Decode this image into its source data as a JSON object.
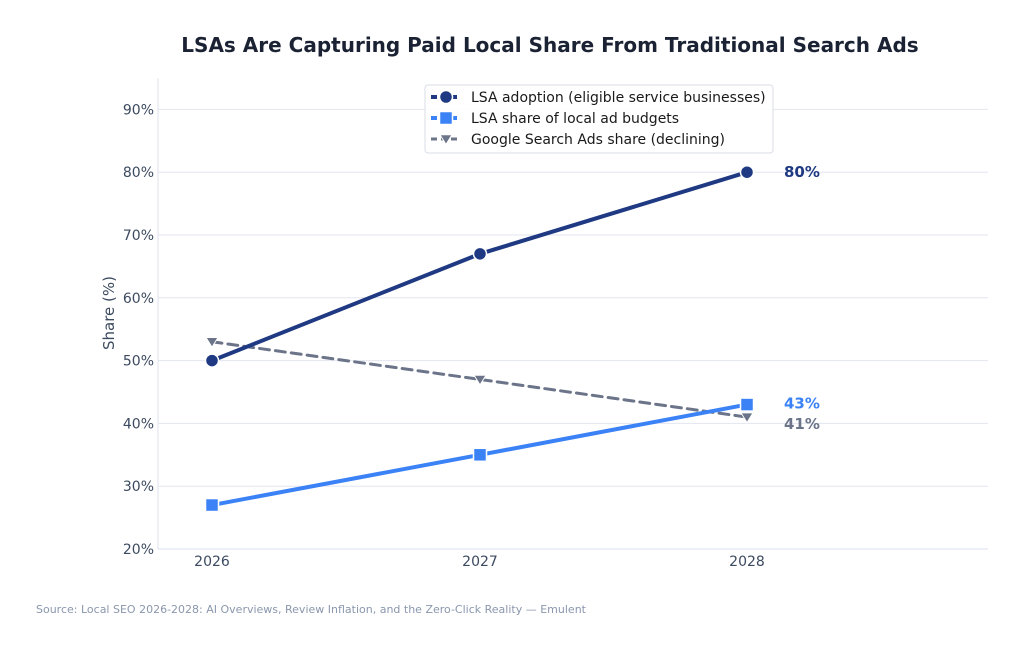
{
  "chart_data": {
    "type": "line",
    "title": "LSAs Are Capturing Paid Local Share From Traditional Search Ads",
    "xlabel": "",
    "ylabel": "Share (%)",
    "categories": [
      "2026",
      "2027",
      "2028"
    ],
    "ylim": [
      20,
      95
    ],
    "yticks": [
      20,
      30,
      40,
      50,
      60,
      70,
      80,
      90
    ],
    "ytick_labels": [
      "20%",
      "30%",
      "40%",
      "50%",
      "60%",
      "70%",
      "80%",
      "90%"
    ],
    "grid": true,
    "legend_position": "top-center",
    "series": [
      {
        "name": "LSA adoption (eligible service businesses)",
        "values": [
          50,
          67,
          80
        ],
        "color": "#1f3a82",
        "marker": "circle",
        "linestyle": "solid",
        "end_label": "80%"
      },
      {
        "name": "LSA share of local ad budgets",
        "values": [
          27,
          35,
          43
        ],
        "color": "#3b82f6",
        "marker": "square",
        "linestyle": "solid",
        "end_label": "43%"
      },
      {
        "name": "Google Search Ads share (declining)",
        "values": [
          53,
          47,
          41
        ],
        "color": "#6b7489",
        "marker": "triangle-down",
        "linestyle": "dashed",
        "end_label": "41%"
      }
    ],
    "source": "Source: Local SEO 2026-2028: AI Overviews, Review Inflation, and the Zero-Click Reality — Emulent"
  }
}
